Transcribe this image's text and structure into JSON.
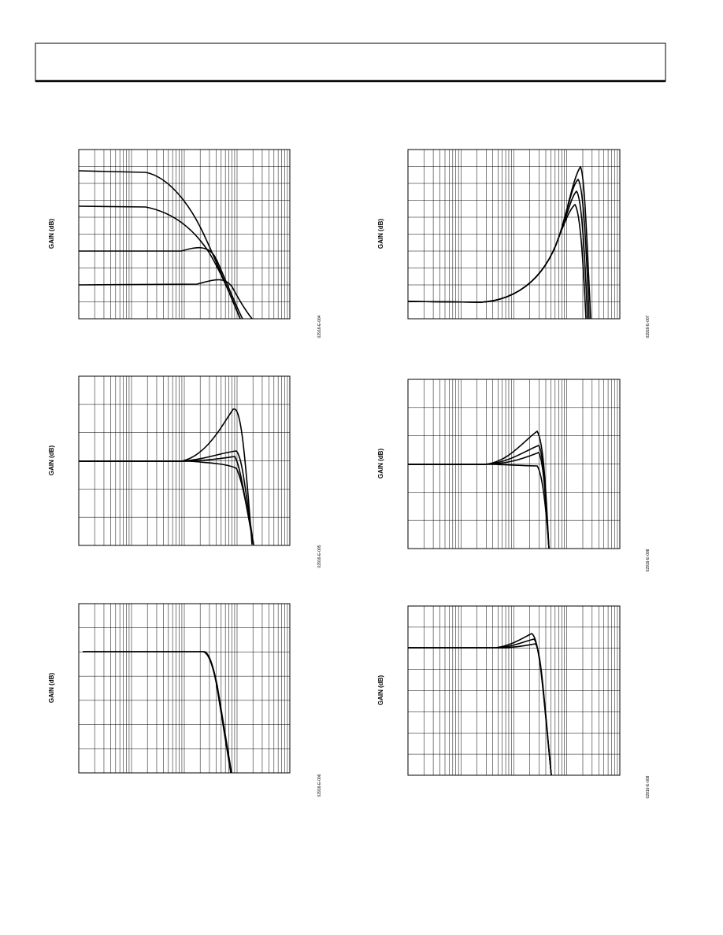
{
  "figures": [
    {
      "y_label": "GAIN (dB)",
      "figure_id": "02916-E-004"
    },
    {
      "y_label": "GAIN (dB)",
      "figure_id": "02916-E-007"
    },
    {
      "y_label": "GAIN (dB)",
      "figure_id": "02916-E-005"
    },
    {
      "y_label": "GAIN (dB)",
      "figure_id": "02916-E-008"
    },
    {
      "y_label": "GAIN (dB)",
      "figure_id": "02916-E-006"
    },
    {
      "y_label": "GAIN (dB)",
      "figure_id": "02916-E-009"
    }
  ]
}
